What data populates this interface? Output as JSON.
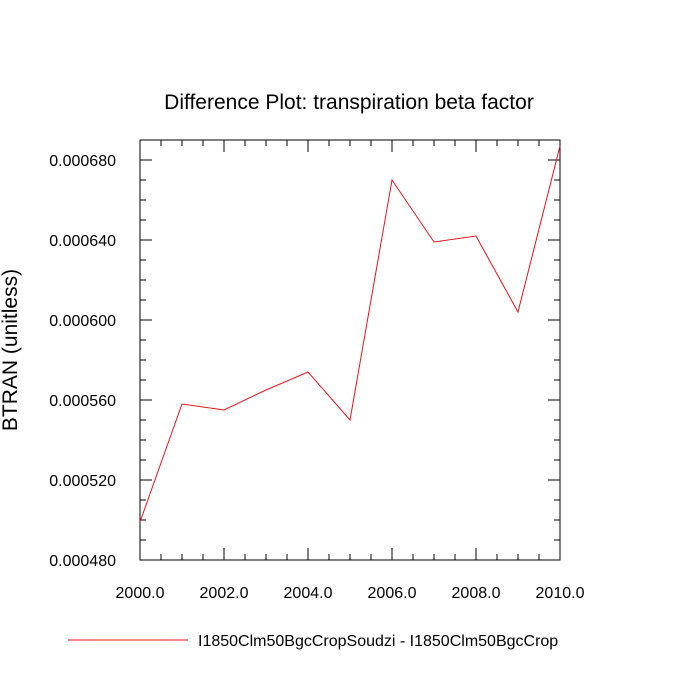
{
  "chart_data": {
    "type": "line",
    "title": "Difference Plot: transpiration beta factor",
    "xlabel": "",
    "ylabel": "BTRAN  (unitless)",
    "xlim": [
      2000,
      2010
    ],
    "ylim": [
      0.00048,
      0.00069
    ],
    "x_ticks": [
      "2000.0",
      "2002.0",
      "2004.0",
      "2006.0",
      "2008.0",
      "2010.0"
    ],
    "x_tick_values": [
      2000,
      2002,
      2004,
      2006,
      2008,
      2010
    ],
    "y_ticks": [
      "0.000480",
      "0.000520",
      "0.000560",
      "0.000600",
      "0.000640",
      "0.000680"
    ],
    "y_tick_values": [
      0.00048,
      0.00052,
      0.00056,
      0.0006,
      0.00064,
      0.00068
    ],
    "grid": false,
    "legend_position": "bottom",
    "series": [
      {
        "name": "I1850Clm50BgcCropSoudzi - I1850Clm50BgcCrop",
        "color": "#e8141c",
        "x": [
          2000,
          2001,
          2002,
          2003,
          2004,
          2005,
          2006,
          2007,
          2008,
          2009,
          2010
        ],
        "values": [
          0.000499,
          0.000558,
          0.000555,
          0.000565,
          0.000574,
          0.00055,
          0.00067,
          0.000639,
          0.000642,
          0.000604,
          0.000687
        ]
      }
    ]
  }
}
